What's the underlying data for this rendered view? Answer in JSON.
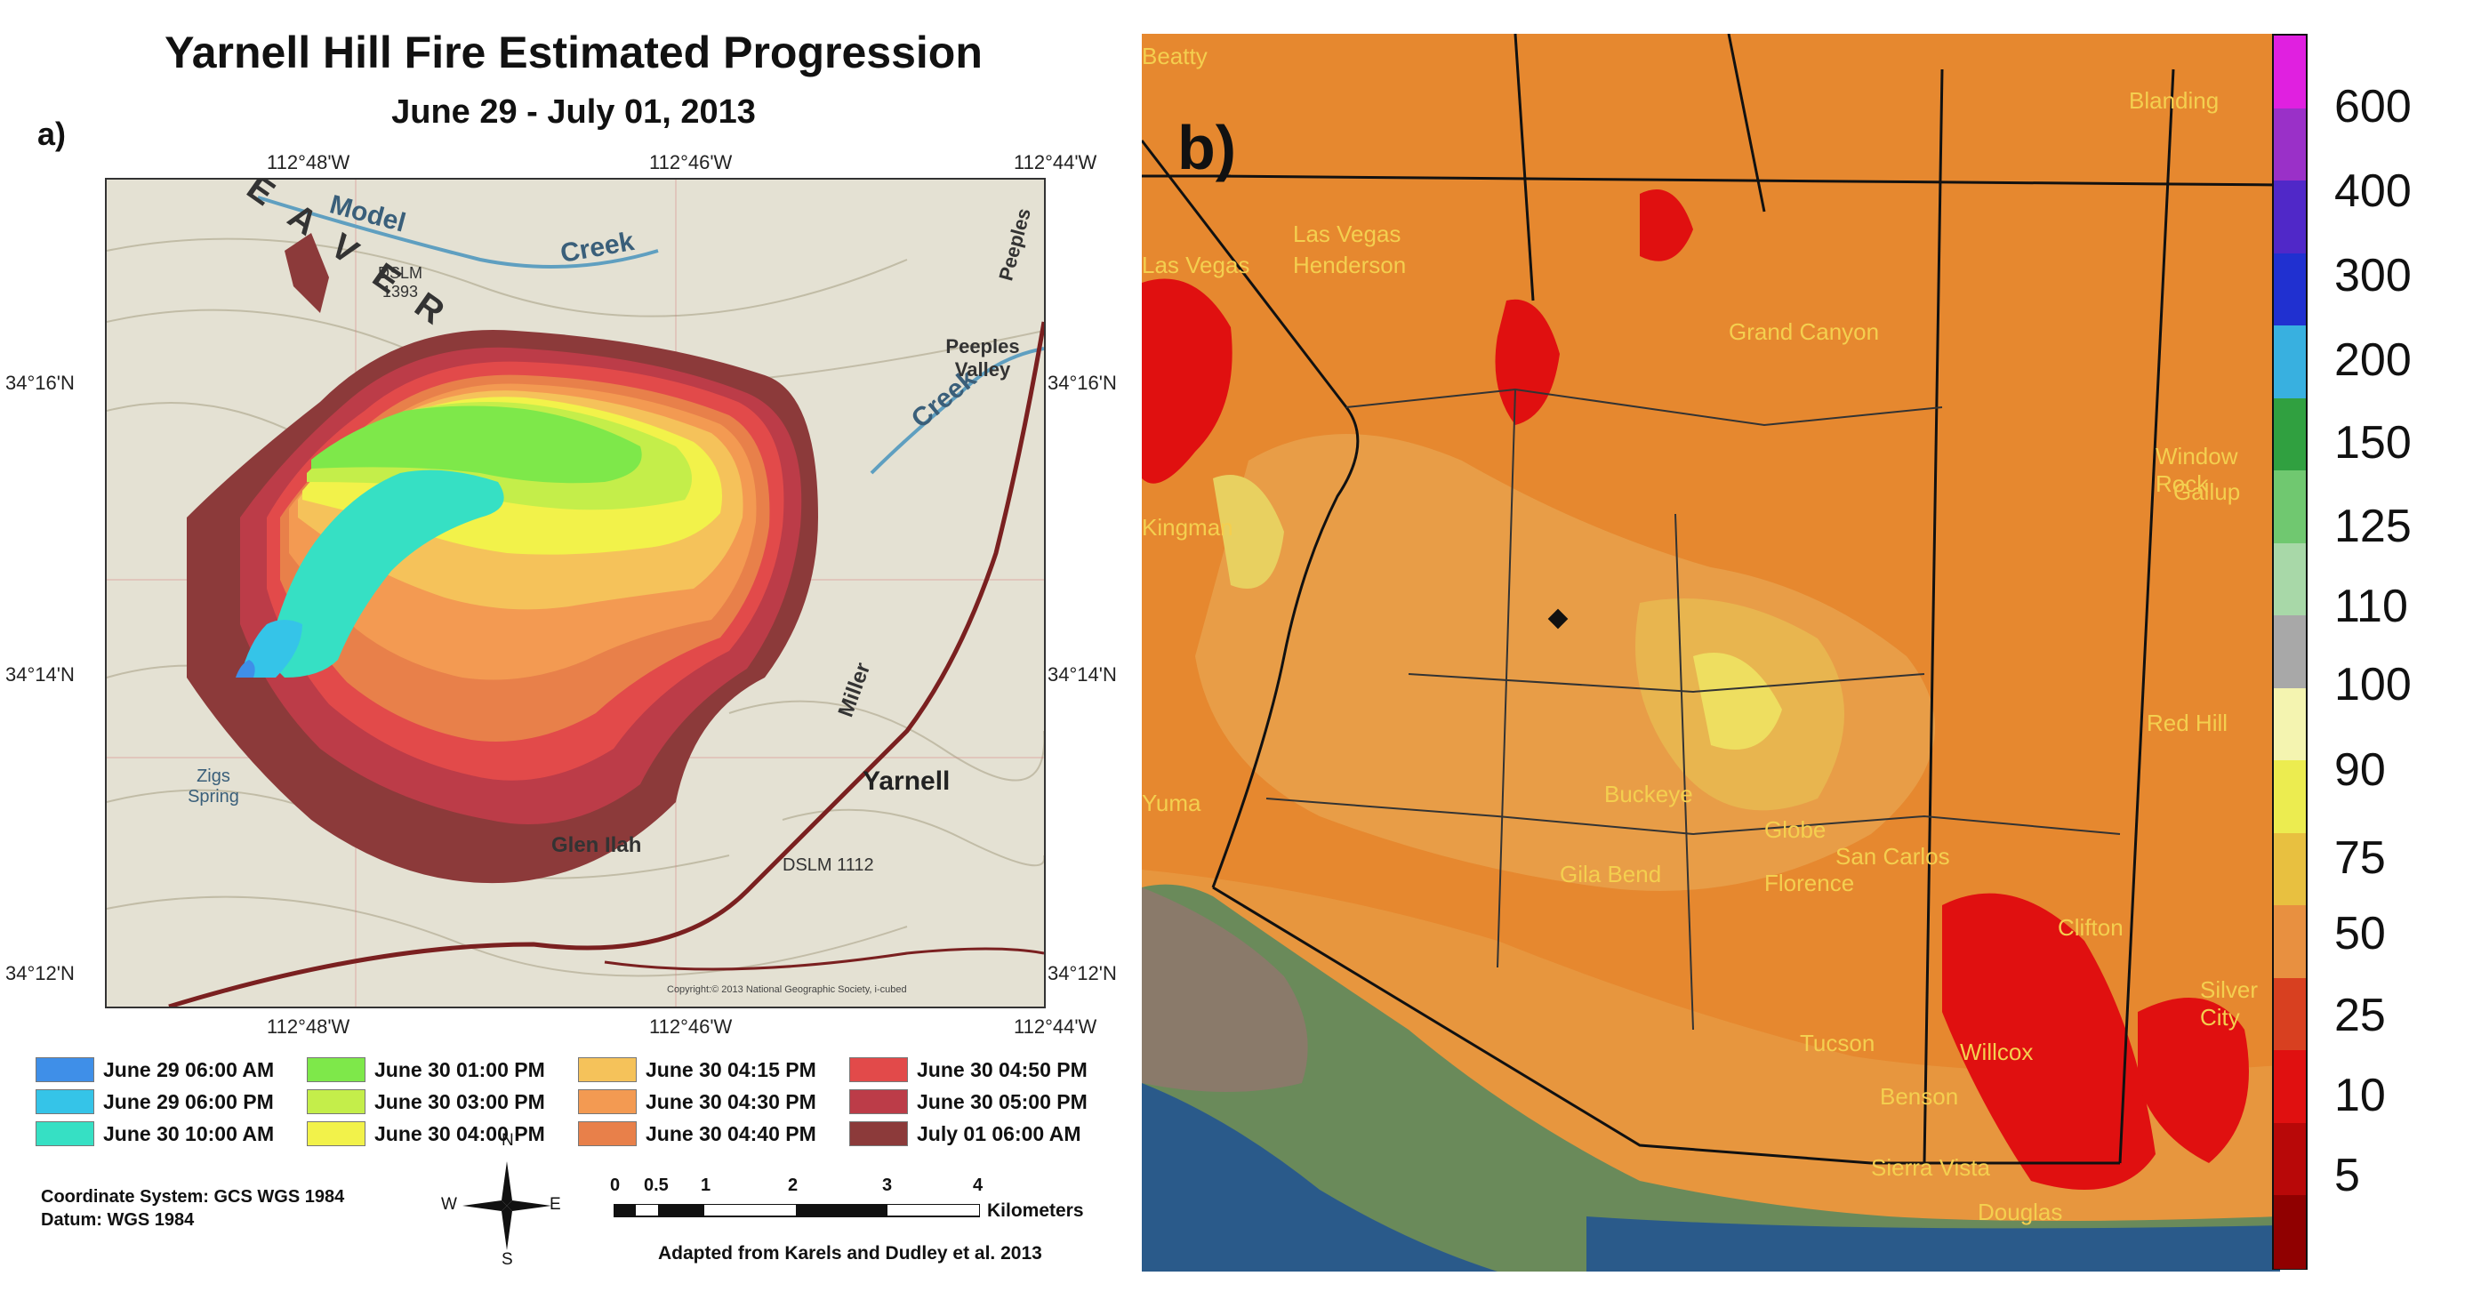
{
  "panel_a": {
    "label": "a)",
    "title": "Yarnell Hill Fire Estimated Progression",
    "subtitle": "June 29 - July 01, 2013",
    "top_ticks": [
      "112°48'W",
      "112°46'W",
      "112°44'W"
    ],
    "bottom_ticks": [
      "112°48'W",
      "112°46'W",
      "112°44'W"
    ],
    "left_ticks": [
      "34°16'N",
      "34°14'N",
      "34°12'N"
    ],
    "right_ticks": [
      "34°16'N",
      "34°14'N",
      "34°12'N"
    ],
    "map_labels": {
      "weaver": "W E A V E R",
      "model": "Model",
      "creek1": "Creek",
      "creek2": "Creek",
      "peeples": "Peeples",
      "peeples_valley": "Peeples Valley",
      "miller": "Miller",
      "yarnell": "Yarnell",
      "glen_ilah": "Glen Ilah",
      "zigs_spring": "Zigs Spring",
      "dslm_1393": "DSLM 1393",
      "dslm_1112": "DSLM 1112",
      "copyright": "Copyright:© 2013 National Geographic Society, i-cubed"
    },
    "legend": [
      {
        "label": "June 29 06:00 AM",
        "color": "#3f8fe8"
      },
      {
        "label": "June 29 06:00 PM",
        "color": "#35c4e8"
      },
      {
        "label": "June 30 10:00 AM",
        "color": "#36e0c4"
      },
      {
        "label": "June 30 01:00 PM",
        "color": "#7ee84a"
      },
      {
        "label": "June 30 03:00 PM",
        "color": "#c4ee4a"
      },
      {
        "label": "June 30 04:00 PM",
        "color": "#f2f24a"
      },
      {
        "label": "June 30 04:15 PM",
        "color": "#f5c25a"
      },
      {
        "label": "June 30 04:30 PM",
        "color": "#f39a52"
      },
      {
        "label": "June 30 04:40 PM",
        "color": "#e8804a"
      },
      {
        "label": "June 30 04:50 PM",
        "color": "#e24a4a"
      },
      {
        "label": "June 30 05:00 PM",
        "color": "#bc3c48"
      },
      {
        "label": "July 01 06:00 AM",
        "color": "#8c3a3a"
      }
    ],
    "coord_system": "Coordinate System: GCS WGS 1984",
    "datum": "Datum: WGS 1984",
    "compass": {
      "n": "N",
      "s": "S",
      "e": "E",
      "w": "W"
    },
    "scale_numbers": [
      "0",
      "0.5",
      "1",
      "2",
      "3",
      "4"
    ],
    "scale_unit": "Kilometers",
    "credit": "Adapted from Karels and Dudley et al. 2013"
  },
  "panel_b": {
    "label": "b)",
    "colorbar_labels": [
      "600",
      "400",
      "300",
      "200",
      "150",
      "125",
      "110",
      "100",
      "90",
      "75",
      "50",
      "25",
      "10",
      "5"
    ],
    "colorbar_colors": [
      "#e020e0",
      "#9a30c8",
      "#5028c8",
      "#2030d0",
      "#38b0e0",
      "#30a040",
      "#70c870",
      "#a8d8a8",
      "#a8a8a8",
      "#f4f4b0",
      "#ecec50",
      "#e8c040",
      "#e89040",
      "#d84020",
      "#e01010",
      "#b80808",
      "#900000"
    ],
    "cities": [
      "Beatty",
      "Las Vegas",
      "Las Vegas",
      "Henderson",
      "Grand Canyon",
      "Blanding",
      "Window Rock",
      "Gallup",
      "Kingman",
      "Red Hill",
      "Buckeye",
      "Globe",
      "San Carlos",
      "Gila Bend",
      "Florence",
      "Clifton",
      "Silver City",
      "Tucson",
      "Willcox",
      "Benson",
      "Sierra Vista",
      "Douglas",
      "Yuma"
    ]
  }
}
